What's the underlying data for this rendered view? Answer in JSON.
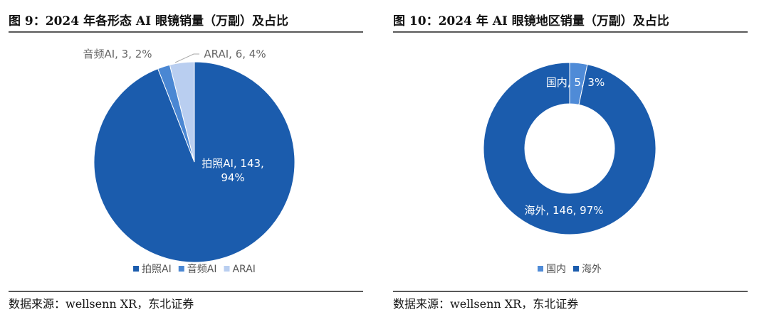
{
  "chart_data": [
    {
      "type": "pie",
      "title": "图 9：2024 年各形态 AI 眼镜销量（万副）及占比",
      "categories": [
        "拍照AI",
        "音频AI",
        "ARAI"
      ],
      "values": [
        143,
        3,
        6
      ],
      "value_labels": [
        "拍照AI, 143, 94%",
        "音频AI, 3, 2%",
        "ARAI, 6, 4%"
      ],
      "colors": [
        "#1b5cad",
        "#4a87d3",
        "#b9cef0"
      ],
      "source": "数据来源：wellsenn XR，东北证券"
    },
    {
      "type": "donut",
      "title": "图 10：2024 年 AI 眼镜地区销量（万副）及占比",
      "categories": [
        "国内",
        "海外"
      ],
      "values": [
        5,
        146
      ],
      "value_labels": [
        "国内, 5, 3%",
        "海外, 146, 97%"
      ],
      "colors": [
        "#4f8bd7",
        "#1b5cad"
      ],
      "source": "数据来源：wellsenn XR，东北证券"
    }
  ]
}
